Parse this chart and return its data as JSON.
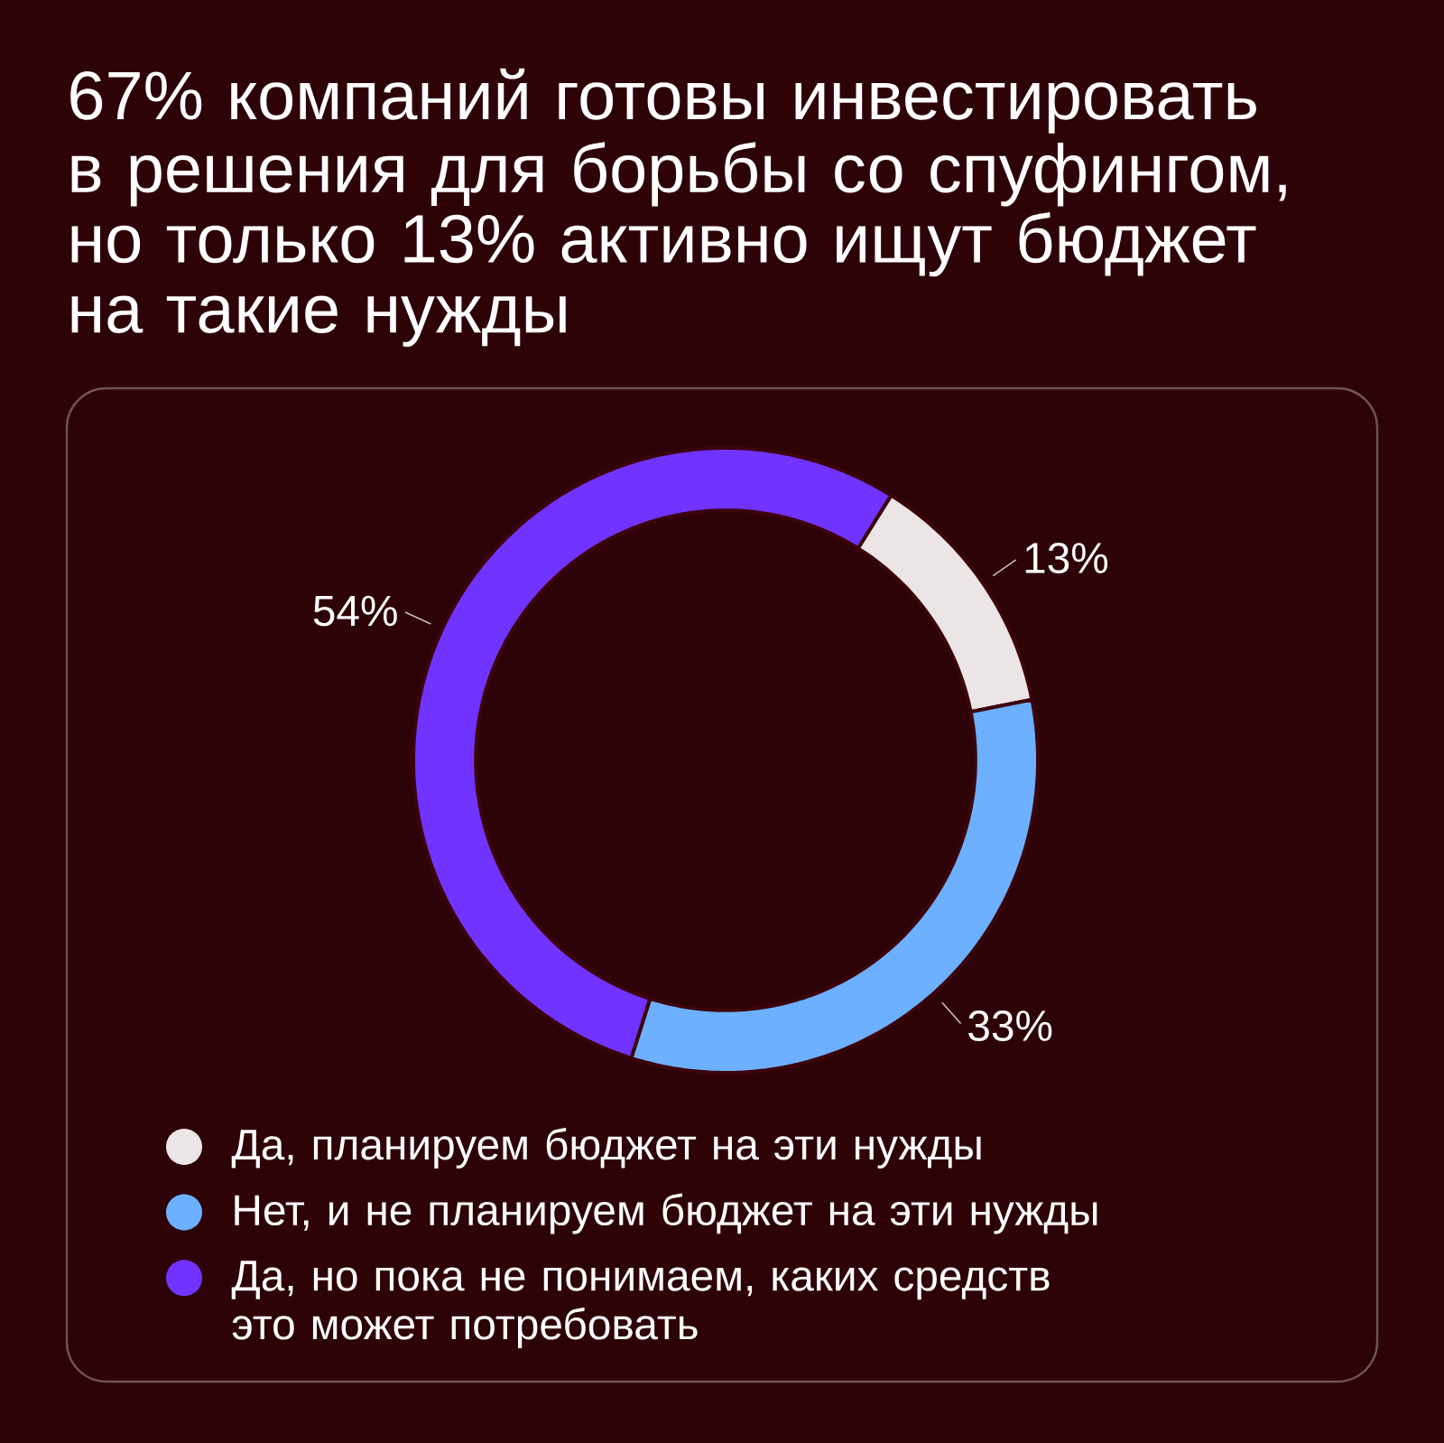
{
  "chart_data": {
    "type": "donut",
    "title": "67% компаний готовы инвестировать в решения для борьбы со спуфингом, но только 13% активно ищут бюджет на такие нужды",
    "categories": [
      "Да, планируем бюджет на эти нужды",
      "Нет, и не планируем бюджет на эти нужды",
      "Да, но пока не понимаем, каких средств это может потребовать"
    ],
    "values": [
      13,
      33,
      54
    ],
    "colors": [
      "#ebe5e6",
      "#6cb0ff",
      "#7133ff"
    ],
    "value_labels": [
      "13%",
      "33%",
      "54%"
    ],
    "legend": "bottom"
  }
}
